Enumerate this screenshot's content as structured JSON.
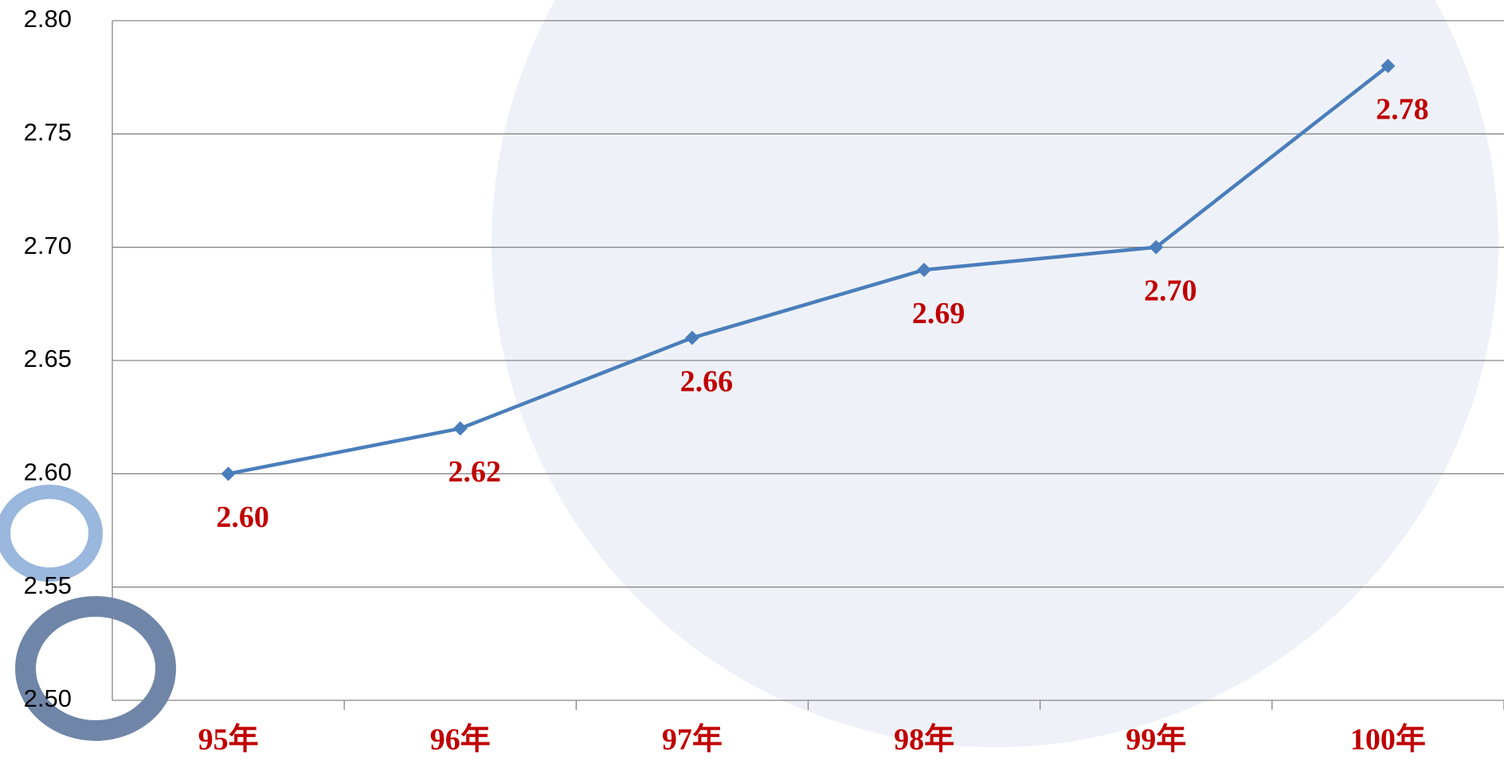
{
  "chart_data": {
    "type": "line",
    "categories": [
      "95年",
      "96年",
      "97年",
      "98年",
      "99年",
      "100年"
    ],
    "series": [
      {
        "color": "#4a7ebb",
        "values": [
          2.6,
          2.62,
          2.66,
          2.69,
          2.7,
          2.78
        ],
        "value_labels": [
          "2.60",
          "2.62",
          "2.66",
          "2.69",
          "2.70",
          "2.78"
        ]
      }
    ],
    "ylim": [
      2.5,
      2.8
    ],
    "yticks": [
      {
        "value": 2.5,
        "label": "2.50"
      },
      {
        "value": 2.55,
        "label": "2.55"
      },
      {
        "value": 2.6,
        "label": "2.60"
      },
      {
        "value": 2.65,
        "label": "2.65"
      },
      {
        "value": 2.7,
        "label": "2.70"
      },
      {
        "value": 2.75,
        "label": "2.75"
      },
      {
        "value": 2.8,
        "label": "2.80"
      }
    ],
    "grid": true
  }
}
